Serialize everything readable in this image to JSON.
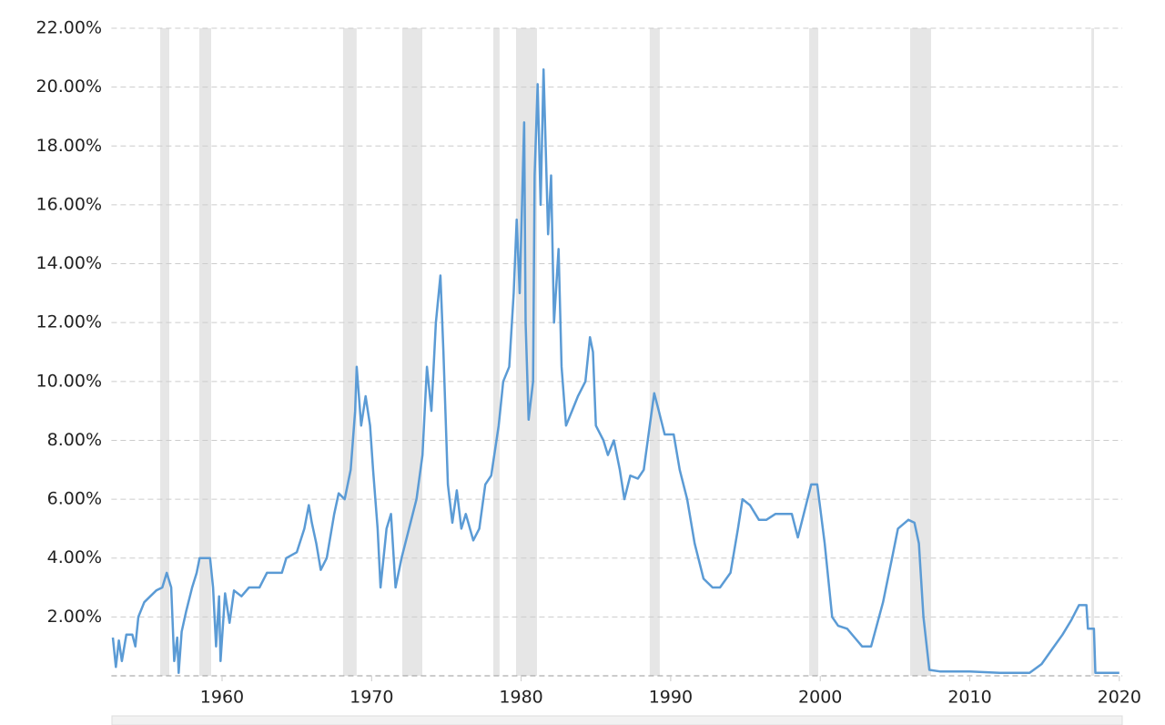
{
  "chart_data": {
    "type": "line",
    "x": [
      1952.7,
      1952.9,
      1953.1,
      1953.3,
      1953.6,
      1954.0,
      1954.2,
      1954.4,
      1954.8,
      1955.2,
      1955.6,
      1956.0,
      1956.3,
      1956.6,
      1956.8,
      1957.0,
      1957.1,
      1957.3,
      1957.6,
      1958.0,
      1958.3,
      1958.5,
      1959.2,
      1959.4,
      1959.6,
      1959.8,
      1959.9,
      1960.2,
      1960.5,
      1960.8,
      1961.3,
      1961.8,
      1962.5,
      1963.0,
      1964.0,
      1964.3,
      1965.0,
      1965.5,
      1965.8,
      1966.0,
      1966.3,
      1966.6,
      1967.0,
      1967.5,
      1967.8,
      1968.2,
      1968.6,
      1968.9,
      1969.0,
      1969.3,
      1969.6,
      1969.9,
      1970.1,
      1970.4,
      1970.6,
      1971.0,
      1971.3,
      1971.6,
      1972.0,
      1972.5,
      1973.0,
      1973.4,
      1973.7,
      1974.0,
      1974.3,
      1974.6,
      1974.8,
      1975.1,
      1975.4,
      1975.7,
      1976.0,
      1976.3,
      1976.8,
      1977.2,
      1977.6,
      1978.0,
      1978.5,
      1978.8,
      1979.2,
      1979.5,
      1979.7,
      1979.9,
      1980.2,
      1980.3,
      1980.5,
      1980.8,
      1980.9,
      1981.1,
      1981.3,
      1981.5,
      1981.8,
      1982.0,
      1982.2,
      1982.5,
      1982.7,
      1983.0,
      1983.4,
      1983.8,
      1984.3,
      1984.6,
      1984.8,
      1985.0,
      1985.5,
      1985.8,
      1986.2,
      1986.6,
      1986.9,
      1987.3,
      1987.8,
      1988.2,
      1988.6,
      1988.9,
      1989.2,
      1989.6,
      1990.2,
      1990.6,
      1991.1,
      1991.6,
      1992.2,
      1992.8,
      1993.3,
      1994.0,
      1994.5,
      1994.8,
      1995.3,
      1995.9,
      1996.4,
      1997.0,
      1997.5,
      1998.1,
      1998.5,
      1998.9,
      1999.4,
      1999.8,
      2000.3,
      2000.8,
      2001.2,
      2001.8,
      2002.3,
      2002.8,
      2003.4,
      2004.2,
      2004.8,
      2005.2,
      2005.9,
      2006.3,
      2006.6,
      2006.9,
      2007.3,
      2008.0,
      2010.0,
      2012.0,
      2014.0,
      2014.8,
      2015.5,
      2016.2,
      2016.8,
      2017.3,
      2017.8,
      2017.9,
      2018.3,
      2018.4,
      2020.0
    ],
    "series": [
      {
        "color": "#5b9bd5",
        "values": [
          1.3,
          0.3,
          1.2,
          0.5,
          1.4,
          1.4,
          1.0,
          2.0,
          2.5,
          2.7,
          2.9,
          3.0,
          3.5,
          3.0,
          0.5,
          1.3,
          0.1,
          1.5,
          2.2,
          3.0,
          3.5,
          4.0,
          4.0,
          3.0,
          1.0,
          2.7,
          0.5,
          2.8,
          1.8,
          2.9,
          2.7,
          3.0,
          3.0,
          3.5,
          3.5,
          4.0,
          4.2,
          5.0,
          5.8,
          5.2,
          4.5,
          3.6,
          4.0,
          5.5,
          6.2,
          6.0,
          7.0,
          9.0,
          10.5,
          8.5,
          9.5,
          8.5,
          7.0,
          5.0,
          3.0,
          5.0,
          5.5,
          3.0,
          4.0,
          5.0,
          6.0,
          7.5,
          10.5,
          9.0,
          12.0,
          13.6,
          11.0,
          6.5,
          5.2,
          6.3,
          5.0,
          5.5,
          4.6,
          5.0,
          6.5,
          6.8,
          8.5,
          10.0,
          10.5,
          13.0,
          15.5,
          13.0,
          18.8,
          12.0,
          8.7,
          10.0,
          17.0,
          20.1,
          16.0,
          20.6,
          15.0,
          17.0,
          12.0,
          14.5,
          10.5,
          8.5,
          9.0,
          9.5,
          10.0,
          11.5,
          11.0,
          8.5,
          8.0,
          7.5,
          8.0,
          7.0,
          6.0,
          6.8,
          6.7,
          7.0,
          8.5,
          9.6,
          9.0,
          8.2,
          8.2,
          7.0,
          6.0,
          4.5,
          3.3,
          3.0,
          3.0,
          3.5,
          5.0,
          6.0,
          5.8,
          5.3,
          5.3,
          5.5,
          5.5,
          5.5,
          4.7,
          5.5,
          6.5,
          6.5,
          4.5,
          2.0,
          1.7,
          1.6,
          1.3,
          1.0,
          1.0,
          2.5,
          4.0,
          5.0,
          5.3,
          5.2,
          4.5,
          2.0,
          0.2,
          0.15,
          0.15,
          0.1,
          0.1,
          0.4,
          0.9,
          1.4,
          1.9,
          2.4,
          2.4,
          1.6,
          1.6,
          0.1,
          0.1
        ]
      }
    ],
    "recessions": [
      [
        1955.86,
        1956.47
      ],
      [
        1958.48,
        1959.27
      ],
      [
        1968.09,
        1969.0
      ],
      [
        1972.05,
        1973.39
      ],
      [
        1978.14,
        1978.56
      ],
      [
        1979.66,
        1981.06
      ],
      [
        1988.6,
        1989.27
      ],
      [
        1999.26,
        1999.87
      ],
      [
        2006.01,
        2007.41
      ],
      [
        2018.13,
        2018.31
      ]
    ],
    "recession_color": "#e6e6e6",
    "xlim": [
      1952.6,
      2020.2
    ],
    "xticks": [
      1960,
      1970,
      1980,
      1990,
      2000,
      2010,
      2020
    ],
    "ylim": [
      0,
      22
    ],
    "yticks": [
      {
        "value": 2,
        "label": "2.00%"
      },
      {
        "value": 4,
        "label": "4.00%"
      },
      {
        "value": 6,
        "label": "6.00%"
      },
      {
        "value": 8,
        "label": "8.00%"
      },
      {
        "value": 10,
        "label": "10.00%"
      },
      {
        "value": 12,
        "label": "12.00%"
      },
      {
        "value": 14,
        "label": "14.00%"
      },
      {
        "value": 16,
        "label": "16.00%"
      },
      {
        "value": 18,
        "label": "18.00%"
      },
      {
        "value": 20,
        "label": "20.00%"
      },
      {
        "value": 22,
        "label": "22.00%"
      }
    ],
    "grid": true
  }
}
